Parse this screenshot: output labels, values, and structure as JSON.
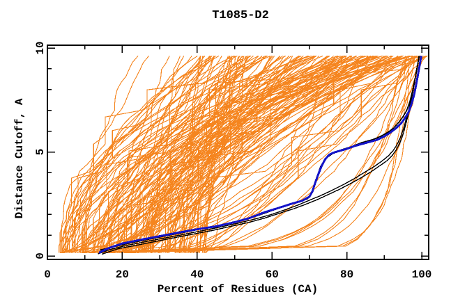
{
  "chart_data": {
    "type": "line",
    "title": "T1085-D2",
    "xlabel": "Percent of Residues (CA)",
    "ylabel": "Distance Cutoff, A",
    "xlim": [
      0,
      100
    ],
    "ylim": [
      0,
      10
    ],
    "grid": false,
    "legend": null,
    "frame_color": "#000000",
    "background_color": "#ffffff",
    "x_ticks_major": [
      0,
      20,
      40,
      60,
      80,
      100
    ],
    "x_tick_labels": [
      "0",
      "20",
      "40",
      "60",
      "80",
      "100"
    ],
    "x_ticks_minor": [
      10,
      30,
      50,
      70,
      90
    ],
    "y_ticks_major": [
      0,
      5,
      10
    ],
    "y_tick_labels": [
      "0",
      "5",
      "10"
    ],
    "y_ticks_minor": [
      1,
      2,
      3,
      4,
      6,
      7,
      8,
      9
    ],
    "series": [
      {
        "name": "reference-model-black-upper",
        "color": "#000000",
        "width": 1.7,
        "points": [
          [
            14,
            0.28
          ],
          [
            18,
            0.45
          ],
          [
            22,
            0.62
          ],
          [
            27,
            0.8
          ],
          [
            32,
            0.98
          ],
          [
            37,
            1.15
          ],
          [
            42,
            1.33
          ],
          [
            47,
            1.52
          ],
          [
            52,
            1.73
          ],
          [
            56,
            1.93
          ],
          [
            60,
            2.18
          ],
          [
            64,
            2.42
          ],
          [
            67,
            2.58
          ],
          [
            69.5,
            2.75
          ],
          [
            70.5,
            3.0
          ],
          [
            71.3,
            3.4
          ],
          [
            72,
            3.8
          ],
          [
            73,
            4.3
          ],
          [
            74.3,
            4.68
          ],
          [
            76,
            4.9
          ],
          [
            78.5,
            5.1
          ],
          [
            81,
            5.24
          ],
          [
            84,
            5.45
          ],
          [
            87,
            5.6
          ],
          [
            89,
            5.75
          ],
          [
            91,
            5.95
          ],
          [
            92.5,
            6.15
          ],
          [
            94,
            6.45
          ],
          [
            95,
            6.7
          ],
          [
            96,
            7.0
          ],
          [
            96.8,
            7.4
          ],
          [
            97.5,
            7.9
          ],
          [
            98.2,
            8.5
          ],
          [
            98.7,
            9.0
          ],
          [
            99.1,
            9.4
          ],
          [
            99.3,
            9.62
          ]
        ]
      },
      {
        "name": "reference-model-black-lower-a",
        "color": "#000000",
        "width": 1.4,
        "points": [
          [
            13.5,
            0.1
          ],
          [
            17,
            0.32
          ],
          [
            21,
            0.5
          ],
          [
            26,
            0.68
          ],
          [
            31,
            0.85
          ],
          [
            36,
            1.02
          ],
          [
            41,
            1.2
          ],
          [
            46,
            1.38
          ],
          [
            51,
            1.58
          ],
          [
            56,
            1.8
          ],
          [
            60,
            2.0
          ],
          [
            64,
            2.25
          ],
          [
            67,
            2.45
          ],
          [
            70,
            2.68
          ],
          [
            73,
            2.9
          ],
          [
            76,
            3.15
          ],
          [
            79,
            3.42
          ],
          [
            82,
            3.72
          ],
          [
            85,
            4.05
          ],
          [
            87.5,
            4.32
          ],
          [
            89.5,
            4.58
          ],
          [
            91,
            4.8
          ],
          [
            92.3,
            5.05
          ],
          [
            93.4,
            5.35
          ],
          [
            94.3,
            5.7
          ],
          [
            95.1,
            6.1
          ],
          [
            95.8,
            6.55
          ],
          [
            96.5,
            7.0
          ],
          [
            97.1,
            7.5
          ],
          [
            97.7,
            8.05
          ],
          [
            98.3,
            8.6
          ],
          [
            98.9,
            9.15
          ],
          [
            99.3,
            9.55
          ],
          [
            99.4,
            9.62
          ]
        ]
      },
      {
        "name": "reference-model-black-lower-b",
        "color": "#000000",
        "width": 1.4,
        "points": [
          [
            14.5,
            0.08
          ],
          [
            19,
            0.35
          ],
          [
            24,
            0.52
          ],
          [
            29,
            0.7
          ],
          [
            34,
            0.88
          ],
          [
            39,
            1.05
          ],
          [
            44,
            1.22
          ],
          [
            49,
            1.42
          ],
          [
            54,
            1.62
          ],
          [
            58,
            1.82
          ],
          [
            62,
            2.05
          ],
          [
            66,
            2.28
          ],
          [
            69,
            2.48
          ],
          [
            72,
            2.7
          ],
          [
            75,
            2.95
          ],
          [
            78,
            3.2
          ],
          [
            81,
            3.48
          ],
          [
            84,
            3.78
          ],
          [
            86.5,
            4.05
          ],
          [
            88.5,
            4.3
          ],
          [
            90.5,
            4.55
          ],
          [
            92,
            4.8
          ],
          [
            93.2,
            5.1
          ],
          [
            94.2,
            5.45
          ],
          [
            95,
            5.85
          ],
          [
            95.7,
            6.3
          ],
          [
            96.4,
            6.8
          ],
          [
            97,
            7.3
          ],
          [
            97.6,
            7.85
          ],
          [
            98.2,
            8.45
          ],
          [
            98.8,
            9.05
          ],
          [
            99.2,
            9.5
          ],
          [
            99.3,
            9.62
          ]
        ]
      },
      {
        "name": "model-highlight-blue",
        "color": "#1414C8",
        "width": 3,
        "points": [
          [
            13.8,
            0.15
          ],
          [
            16,
            0.35
          ],
          [
            20,
            0.6
          ],
          [
            25,
            0.78
          ],
          [
            30,
            0.95
          ],
          [
            35,
            1.12
          ],
          [
            40,
            1.28
          ],
          [
            45,
            1.42
          ],
          [
            50,
            1.62
          ],
          [
            54,
            1.82
          ],
          [
            58,
            2.1
          ],
          [
            62,
            2.32
          ],
          [
            65,
            2.5
          ],
          [
            68,
            2.65
          ],
          [
            70,
            2.85
          ],
          [
            70.8,
            3.1
          ],
          [
            71.5,
            3.5
          ],
          [
            72.3,
            3.9
          ],
          [
            73.2,
            4.3
          ],
          [
            74.2,
            4.65
          ],
          [
            75.3,
            4.87
          ],
          [
            76.5,
            4.97
          ],
          [
            78,
            5.05
          ],
          [
            80,
            5.15
          ],
          [
            82,
            5.28
          ],
          [
            84,
            5.38
          ],
          [
            86,
            5.48
          ],
          [
            88,
            5.58
          ],
          [
            90,
            5.75
          ],
          [
            91.5,
            5.92
          ],
          [
            93,
            6.12
          ],
          [
            94.5,
            6.38
          ],
          [
            95.5,
            6.62
          ],
          [
            96.5,
            6.92
          ],
          [
            97.3,
            7.32
          ],
          [
            98,
            7.78
          ],
          [
            98.5,
            8.22
          ],
          [
            99,
            8.72
          ],
          [
            99.4,
            9.12
          ],
          [
            99.7,
            9.45
          ],
          [
            99.9,
            9.62
          ]
        ]
      }
    ],
    "ensemble": {
      "name": "server-models-orange",
      "color": "#F5851F",
      "width": 1.1,
      "y_start": 0.15,
      "y_top": 9.62,
      "groups": [
        {
          "count": 170,
          "seed": 11,
          "start_pct": [
            3,
            42
          ],
          "end_pct": [
            24,
            101.5
          ],
          "shape_exp": [
            0.45,
            2.6
          ],
          "start_skew": 1.3,
          "end_skew": 0.65,
          "flat_prob": 0.3,
          "jitter": 1.6
        },
        {
          "count": 10,
          "seed": 5,
          "start_pct": [
            8,
            26
          ],
          "end_pct": [
            95,
            101.3
          ],
          "shape_exp": [
            0.07,
            0.22
          ],
          "start_skew": 1.0,
          "end_skew": 1.0,
          "flat_prob": 0,
          "jitter": 0.8
        }
      ]
    }
  }
}
